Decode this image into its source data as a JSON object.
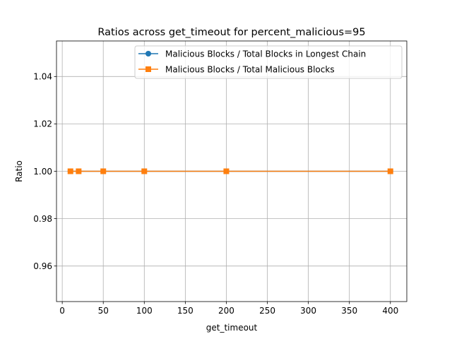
{
  "chart_data": {
    "type": "line",
    "title": "Ratios across get_timeout for percent_malicious=95",
    "xlabel": "get_timeout",
    "ylabel": "Ratio",
    "xlim": [
      -7,
      420
    ],
    "ylim": [
      0.945,
      1.055
    ],
    "xticks": [
      0,
      50,
      100,
      150,
      200,
      250,
      300,
      350,
      400
    ],
    "yticks": [
      0.96,
      0.98,
      1.0,
      1.02,
      1.04
    ],
    "xtick_labels": [
      "0",
      "50",
      "100",
      "150",
      "200",
      "250",
      "300",
      "350",
      "400"
    ],
    "ytick_labels": [
      "0.96",
      "0.98",
      "1.00",
      "1.02",
      "1.04"
    ],
    "grid": true,
    "legend_position": "top-right",
    "x": [
      10,
      20,
      50,
      100,
      200,
      400
    ],
    "series": [
      {
        "name": "Malicious Blocks / Total Blocks in Longest Chain",
        "values": [
          1.0,
          1.0,
          1.0,
          1.0,
          1.0,
          1.0
        ],
        "color": "#1f77b4",
        "marker": "circle"
      },
      {
        "name": "Malicious Blocks / Total Malicious Blocks",
        "values": [
          1.0,
          1.0,
          1.0,
          1.0,
          1.0,
          1.0
        ],
        "color": "#ff7f0e",
        "marker": "square"
      }
    ]
  }
}
